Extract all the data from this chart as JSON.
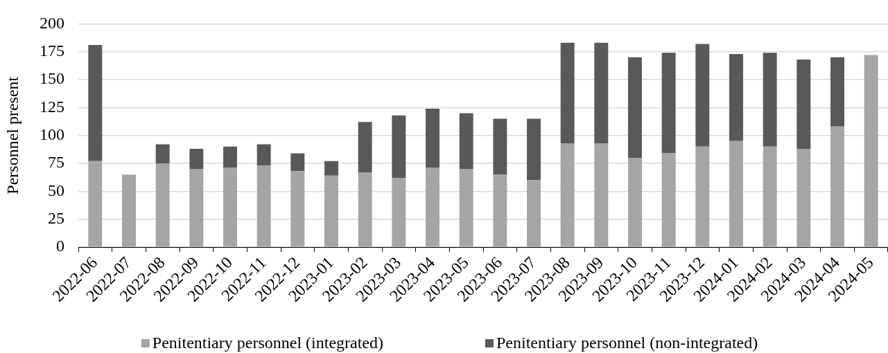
{
  "chart_data": {
    "type": "bar",
    "ylabel": "Personnel present",
    "categories": [
      "2022-06",
      "2022-07",
      "2022-08",
      "2022-09",
      "2022-10",
      "2022-11",
      "2022-12",
      "2023-01",
      "2023-02",
      "2023-03",
      "2023-04",
      "2023-05",
      "2023-06",
      "2023-07",
      "2023-08",
      "2023-09",
      "2023-10",
      "2023-11",
      "2023-12",
      "2024-01",
      "2024-02",
      "2024-03",
      "2024-04",
      "2024-05"
    ],
    "series": [
      {
        "name": "Penitentiary personnel (integrated)",
        "color": "#a5a5a5",
        "values": [
          77,
          65,
          75,
          70,
          71,
          73,
          68,
          64,
          67,
          62,
          71,
          70,
          65,
          60,
          93,
          93,
          80,
          84,
          90,
          95,
          90,
          88,
          108,
          172
        ]
      },
      {
        "name": "Penitentiary personnel (non-integrated)",
        "color": "#595959",
        "values": [
          104,
          null,
          17,
          18,
          19,
          19,
          16,
          13,
          45,
          56,
          53,
          50,
          50,
          55,
          90,
          90,
          90,
          90,
          92,
          78,
          84,
          80,
          62,
          null
        ]
      }
    ],
    "stacked": true,
    "ylim": [
      0,
      200
    ],
    "yticks": [
      0,
      25,
      50,
      75,
      100,
      125,
      150,
      175,
      200
    ],
    "grid": "y",
    "legend": "bottom"
  }
}
